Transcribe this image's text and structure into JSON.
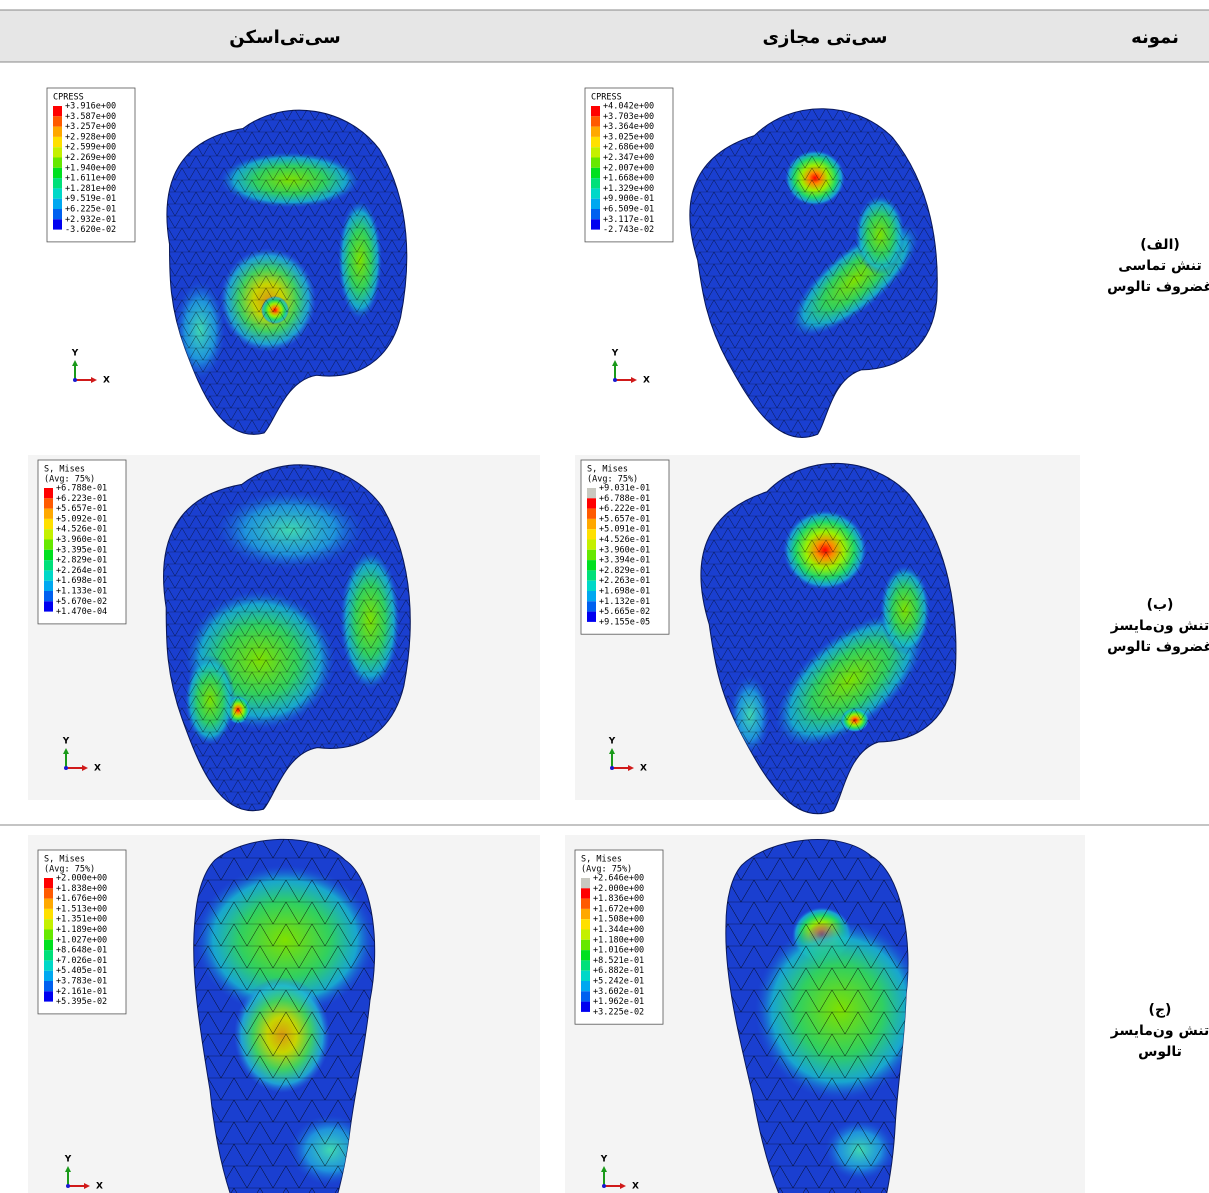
{
  "header": {
    "col_ctscan": "سی‌تی‌اسکن",
    "col_virtual": "سی‌تی مجازی",
    "col_sample": "نمونه"
  },
  "rows": [
    {
      "label": [
        "(الف)",
        "تنش تماسی",
        "غضروف تالوس"
      ],
      "cells": [
        {
          "legend_title": [
            "CPRESS"
          ],
          "legend_values": [
            "+3.916e+00",
            "+3.587e+00",
            "+3.257e+00",
            "+2.928e+00",
            "+2.599e+00",
            "+2.269e+00",
            "+1.940e+00",
            "+1.611e+00",
            "+1.281e+00",
            "+9.519e-01",
            "+6.225e-01",
            "+2.932e-01",
            "-3.620e-02"
          ],
          "axis": [
            "Y",
            "X"
          ]
        },
        {
          "legend_title": [
            "CPRESS"
          ],
          "legend_values": [
            "+4.042e+00",
            "+3.703e+00",
            "+3.364e+00",
            "+3.025e+00",
            "+2.686e+00",
            "+2.347e+00",
            "+2.007e+00",
            "+1.668e+00",
            "+1.329e+00",
            "+9.900e-01",
            "+6.509e-01",
            "+3.117e-01",
            "-2.743e-02"
          ],
          "axis": [
            "Y",
            "X"
          ]
        }
      ]
    },
    {
      "label": [
        "(ب)",
        "تنش ون‌مایسز",
        "غضروف تالوس"
      ],
      "cells": [
        {
          "legend_title": [
            "S, Mises",
            "(Avg: 75%)"
          ],
          "legend_values": [
            "+6.788e-01",
            "+6.223e-01",
            "+5.657e-01",
            "+5.092e-01",
            "+4.526e-01",
            "+3.960e-01",
            "+3.395e-01",
            "+2.829e-01",
            "+2.264e-01",
            "+1.698e-01",
            "+1.133e-01",
            "+5.670e-02",
            "+1.470e-04"
          ],
          "axis": [
            "Y",
            "X"
          ]
        },
        {
          "legend_title": [
            "S, Mises",
            "(Avg: 75%)"
          ],
          "legend_values": [
            "+9.031e-01",
            "+6.788e-01",
            "+6.222e-01",
            "+5.657e-01",
            "+5.091e-01",
            "+4.526e-01",
            "+3.960e-01",
            "+3.394e-01",
            "+2.829e-01",
            "+2.263e-01",
            "+1.698e-01",
            "+1.132e-01",
            "+5.665e-02",
            "+9.155e-05"
          ],
          "axis": [
            "Y",
            "X"
          ]
        }
      ]
    },
    {
      "label": [
        "(ج)",
        "تنش ون‌مایسز",
        "تالوس"
      ],
      "cells": [
        {
          "legend_title": [
            "S, Mises",
            "(Avg: 75%)"
          ],
          "legend_values": [
            "+2.000e+00",
            "+1.838e+00",
            "+1.676e+00",
            "+1.513e+00",
            "+1.351e+00",
            "+1.189e+00",
            "+1.027e+00",
            "+8.648e-01",
            "+7.026e-01",
            "+5.405e-01",
            "+3.783e-01",
            "+2.161e-01",
            "+5.395e-02"
          ],
          "axis": [
            "Y",
            "X"
          ]
        },
        {
          "legend_title": [
            "S, Mises",
            "(Avg: 75%)"
          ],
          "legend_values": [
            "+2.646e+00",
            "+2.000e+00",
            "+1.836e+00",
            "+1.672e+00",
            "+1.508e+00",
            "+1.344e+00",
            "+1.180e+00",
            "+1.016e+00",
            "+8.521e-01",
            "+6.882e-01",
            "+5.242e-01",
            "+3.602e-01",
            "+1.962e-01",
            "+3.225e-02"
          ],
          "axis": [
            "Y",
            "X"
          ]
        }
      ]
    }
  ]
}
